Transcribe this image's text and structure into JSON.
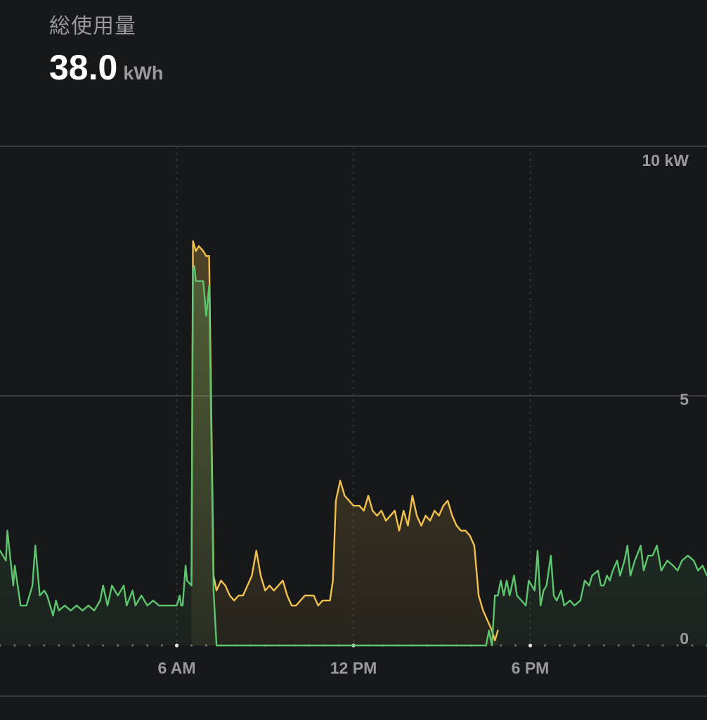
{
  "header": {
    "title": "総使用量",
    "total_value": "38.0",
    "total_unit": "kWh"
  },
  "colors": {
    "background": "#17181a",
    "grid": "#3a3a3d",
    "gridline_dotted": "#3a3a3d",
    "grid_label": "#9a9a9e",
    "series_grid": "#5ec46e",
    "series_solar": "#f2c04c"
  },
  "chart_data": {
    "type": "area",
    "x_unit": "hour",
    "x_range": [
      0,
      24
    ],
    "ylim": [
      0,
      10
    ],
    "y_ticks": [
      {
        "value": 10,
        "label": "10 kW"
      },
      {
        "value": 5,
        "label": "5"
      },
      {
        "value": 0,
        "label": "0"
      }
    ],
    "x_ticks": [
      {
        "value": 6,
        "label": "6 AM"
      },
      {
        "value": 12,
        "label": "12 PM"
      },
      {
        "value": 18,
        "label": "6 PM"
      }
    ],
    "grid": true,
    "legend": "none",
    "series": [
      {
        "color": "#5ec46e",
        "points": [
          [
            0.0,
            1.9
          ],
          [
            0.2,
            1.7
          ],
          [
            0.25,
            2.3
          ],
          [
            0.45,
            1.2
          ],
          [
            0.5,
            1.6
          ],
          [
            0.7,
            0.8
          ],
          [
            0.9,
            0.8
          ],
          [
            1.0,
            1.0
          ],
          [
            1.1,
            1.2
          ],
          [
            1.2,
            2.0
          ],
          [
            1.35,
            1.0
          ],
          [
            1.5,
            1.1
          ],
          [
            1.6,
            1.0
          ],
          [
            1.8,
            0.6
          ],
          [
            1.9,
            0.9
          ],
          [
            2.0,
            0.7
          ],
          [
            2.2,
            0.8
          ],
          [
            2.4,
            0.7
          ],
          [
            2.6,
            0.8
          ],
          [
            2.8,
            0.7
          ],
          [
            3.0,
            0.8
          ],
          [
            3.2,
            0.7
          ],
          [
            3.4,
            0.9
          ],
          [
            3.5,
            1.2
          ],
          [
            3.65,
            0.8
          ],
          [
            3.8,
            1.2
          ],
          [
            4.0,
            1.0
          ],
          [
            4.2,
            1.2
          ],
          [
            4.3,
            0.8
          ],
          [
            4.5,
            1.1
          ],
          [
            4.6,
            0.8
          ],
          [
            4.8,
            1.0
          ],
          [
            5.0,
            0.8
          ],
          [
            5.2,
            0.9
          ],
          [
            5.4,
            0.8
          ],
          [
            5.6,
            0.8
          ],
          [
            5.8,
            0.8
          ],
          [
            6.0,
            0.8
          ],
          [
            6.1,
            1.0
          ],
          [
            6.15,
            0.8
          ],
          [
            6.2,
            0.8
          ],
          [
            6.3,
            1.6
          ],
          [
            6.35,
            1.3
          ],
          [
            6.5,
            1.2
          ],
          [
            6.55,
            7.5
          ],
          [
            6.6,
            7.6
          ],
          [
            6.65,
            7.3
          ],
          [
            6.75,
            7.3
          ],
          [
            6.9,
            7.3
          ],
          [
            7.0,
            6.6
          ],
          [
            7.1,
            7.2
          ],
          [
            7.25,
            1.1
          ],
          [
            7.35,
            0.0
          ],
          [
            16.5,
            0.0
          ],
          [
            16.6,
            0.3
          ],
          [
            16.7,
            0.0
          ],
          [
            16.8,
            1.0
          ],
          [
            16.9,
            1.0
          ],
          [
            17.0,
            1.3
          ],
          [
            17.1,
            1.0
          ],
          [
            17.2,
            1.3
          ],
          [
            17.3,
            1.0
          ],
          [
            17.45,
            1.4
          ],
          [
            17.55,
            1.0
          ],
          [
            17.7,
            0.9
          ],
          [
            17.85,
            0.8
          ],
          [
            17.95,
            1.3
          ],
          [
            18.15,
            1.1
          ],
          [
            18.25,
            1.9
          ],
          [
            18.35,
            0.8
          ],
          [
            18.45,
            1.1
          ],
          [
            18.55,
            1.2
          ],
          [
            18.7,
            1.8
          ],
          [
            18.8,
            1.0
          ],
          [
            18.9,
            0.9
          ],
          [
            19.05,
            1.1
          ],
          [
            19.15,
            0.8
          ],
          [
            19.35,
            0.9
          ],
          [
            19.5,
            0.8
          ],
          [
            19.7,
            0.9
          ],
          [
            19.85,
            1.3
          ],
          [
            20.0,
            1.2
          ],
          [
            20.1,
            1.4
          ],
          [
            20.3,
            1.5
          ],
          [
            20.4,
            1.2
          ],
          [
            20.5,
            1.2
          ],
          [
            20.6,
            1.4
          ],
          [
            20.7,
            1.3
          ],
          [
            20.8,
            1.5
          ],
          [
            20.95,
            1.7
          ],
          [
            21.05,
            1.4
          ],
          [
            21.2,
            1.7
          ],
          [
            21.3,
            2.0
          ],
          [
            21.4,
            1.4
          ],
          [
            21.55,
            1.7
          ],
          [
            21.75,
            2.0
          ],
          [
            21.85,
            1.5
          ],
          [
            22.0,
            1.8
          ],
          [
            22.15,
            1.8
          ],
          [
            22.3,
            2.0
          ],
          [
            22.45,
            1.5
          ],
          [
            22.65,
            1.7
          ],
          [
            22.85,
            1.6
          ],
          [
            23.0,
            1.5
          ],
          [
            23.15,
            1.7
          ],
          [
            23.35,
            1.8
          ],
          [
            23.55,
            1.7
          ],
          [
            23.7,
            1.5
          ],
          [
            23.85,
            1.6
          ],
          [
            24.0,
            1.4
          ]
        ]
      },
      {
        "color": "#f2c04c",
        "points": [
          [
            6.5,
            1.4
          ],
          [
            6.55,
            8.1
          ],
          [
            6.65,
            7.9
          ],
          [
            6.75,
            8.0
          ],
          [
            6.9,
            7.9
          ],
          [
            7.0,
            7.8
          ],
          [
            7.1,
            7.8
          ],
          [
            7.25,
            1.4
          ],
          [
            7.35,
            1.1
          ],
          [
            7.5,
            1.3
          ],
          [
            7.65,
            1.2
          ],
          [
            7.8,
            1.0
          ],
          [
            7.95,
            0.9
          ],
          [
            8.1,
            1.0
          ],
          [
            8.25,
            1.0
          ],
          [
            8.4,
            1.2
          ],
          [
            8.55,
            1.4
          ],
          [
            8.7,
            1.9
          ],
          [
            8.85,
            1.4
          ],
          [
            9.0,
            1.1
          ],
          [
            9.15,
            1.2
          ],
          [
            9.3,
            1.1
          ],
          [
            9.45,
            1.2
          ],
          [
            9.6,
            1.3
          ],
          [
            9.75,
            1.0
          ],
          [
            9.9,
            0.8
          ],
          [
            10.05,
            0.8
          ],
          [
            10.2,
            0.9
          ],
          [
            10.35,
            1.0
          ],
          [
            10.5,
            1.0
          ],
          [
            10.65,
            1.0
          ],
          [
            10.8,
            0.8
          ],
          [
            10.95,
            0.9
          ],
          [
            11.1,
            0.9
          ],
          [
            11.2,
            0.9
          ],
          [
            11.3,
            1.3
          ],
          [
            11.4,
            2.9
          ],
          [
            11.55,
            3.3
          ],
          [
            11.7,
            3.0
          ],
          [
            11.85,
            2.9
          ],
          [
            12.0,
            2.8
          ],
          [
            12.2,
            2.8
          ],
          [
            12.35,
            2.7
          ],
          [
            12.5,
            3.0
          ],
          [
            12.65,
            2.7
          ],
          [
            12.8,
            2.6
          ],
          [
            12.95,
            2.7
          ],
          [
            13.1,
            2.5
          ],
          [
            13.25,
            2.6
          ],
          [
            13.4,
            2.7
          ],
          [
            13.55,
            2.3
          ],
          [
            13.7,
            2.7
          ],
          [
            13.85,
            2.4
          ],
          [
            14.0,
            3.0
          ],
          [
            14.15,
            2.6
          ],
          [
            14.3,
            2.4
          ],
          [
            14.45,
            2.6
          ],
          [
            14.6,
            2.5
          ],
          [
            14.75,
            2.7
          ],
          [
            14.9,
            2.6
          ],
          [
            15.05,
            2.8
          ],
          [
            15.2,
            2.9
          ],
          [
            15.35,
            2.6
          ],
          [
            15.5,
            2.4
          ],
          [
            15.65,
            2.3
          ],
          [
            15.8,
            2.3
          ],
          [
            15.95,
            2.2
          ],
          [
            16.1,
            2.0
          ],
          [
            16.25,
            1.0
          ],
          [
            16.4,
            0.7
          ],
          [
            16.55,
            0.5
          ],
          [
            16.7,
            0.3
          ],
          [
            16.8,
            0.1
          ],
          [
            16.9,
            0.3
          ]
        ]
      }
    ]
  }
}
